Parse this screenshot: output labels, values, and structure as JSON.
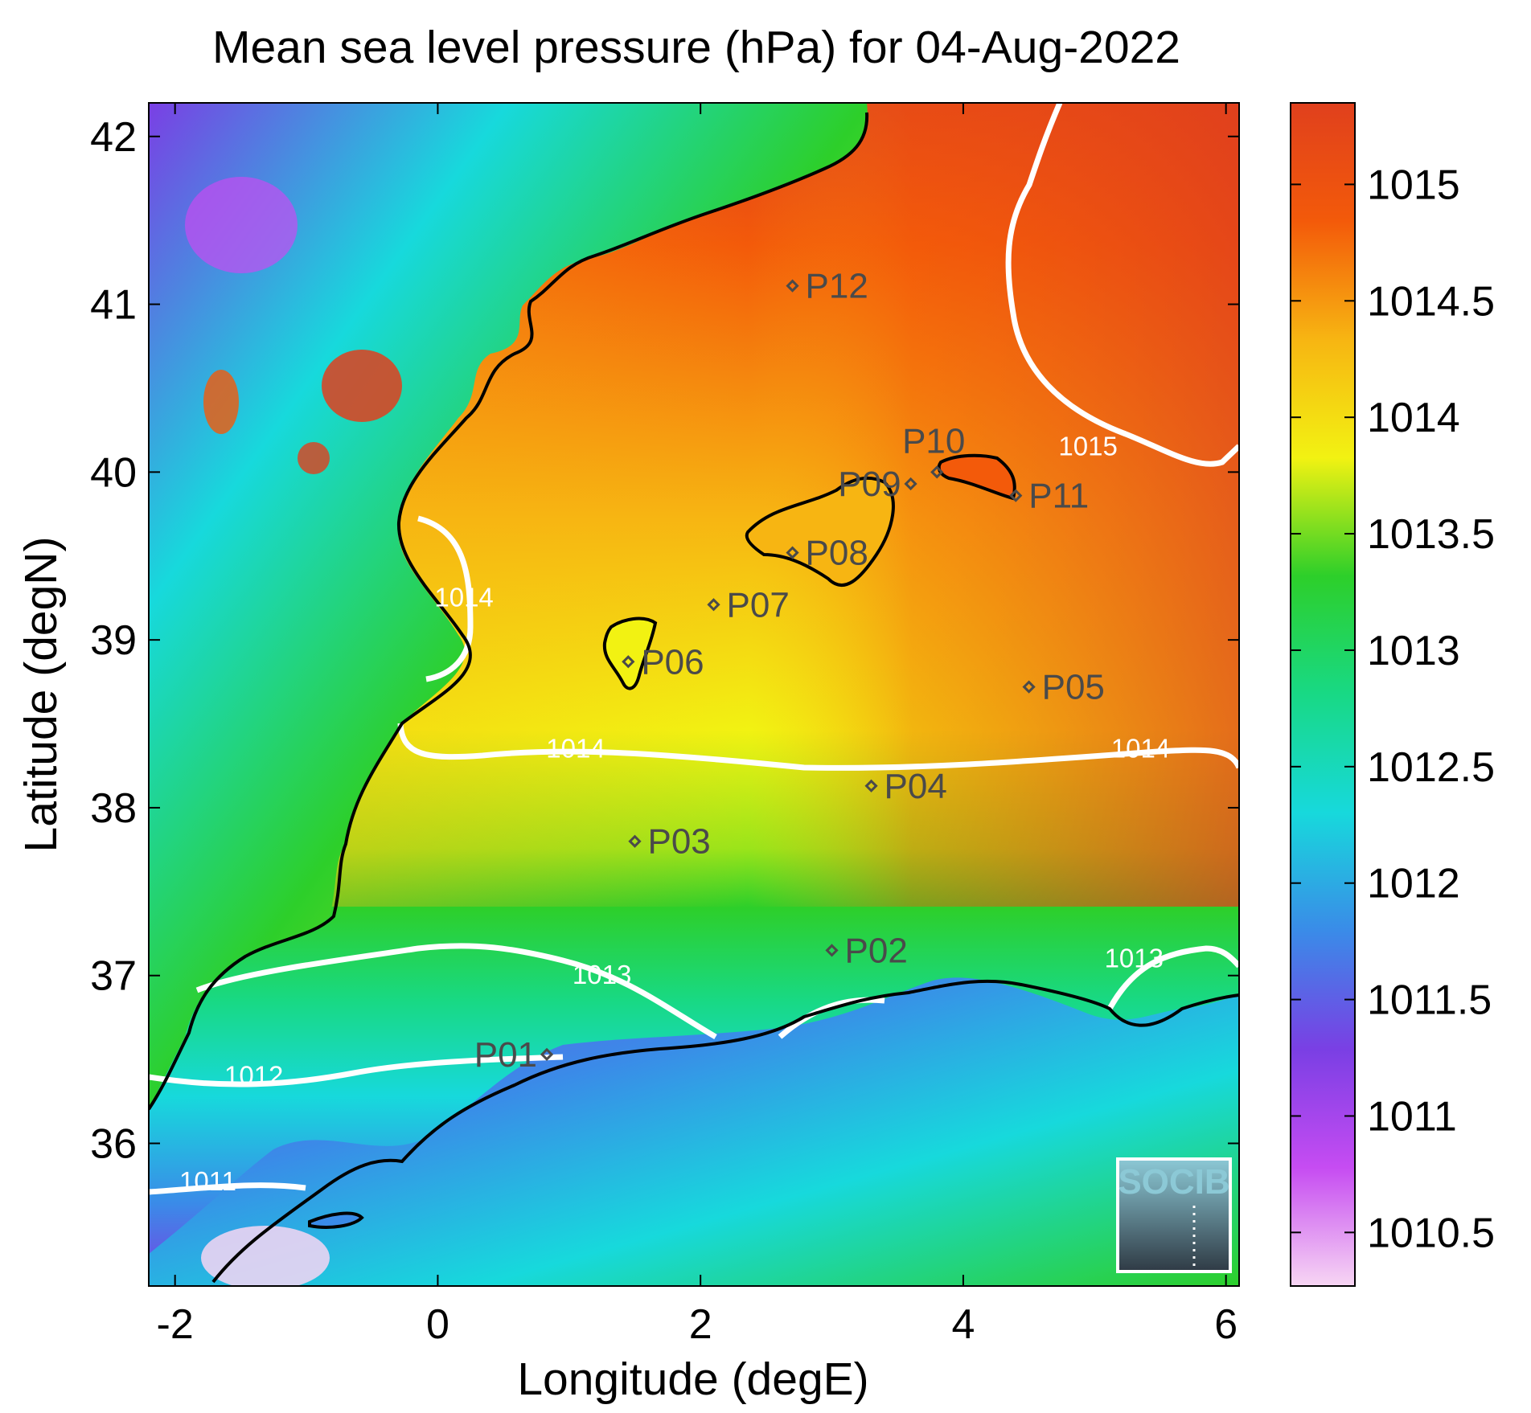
{
  "title": "Mean sea level pressure (hPa) for 04-Aug-2022",
  "x_axis": {
    "label": "Longitude (degE)",
    "range": [
      -2.2,
      6.1
    ],
    "ticks": [
      {
        "value": -2,
        "label": "-2"
      },
      {
        "value": 0,
        "label": "0"
      },
      {
        "value": 2,
        "label": "2"
      },
      {
        "value": 4,
        "label": "4"
      },
      {
        "value": 6,
        "label": "6"
      }
    ]
  },
  "y_axis": {
    "label": "Latitude (degN)",
    "range": [
      35.15,
      42.2
    ],
    "ticks": [
      {
        "value": 36,
        "label": "36"
      },
      {
        "value": 37,
        "label": "37"
      },
      {
        "value": 38,
        "label": "38"
      },
      {
        "value": 39,
        "label": "39"
      },
      {
        "value": 40,
        "label": "40"
      },
      {
        "value": 41,
        "label": "41"
      },
      {
        "value": 42,
        "label": "42"
      }
    ]
  },
  "colorbar": {
    "range": [
      1010.27,
      1015.35
    ],
    "ticks": [
      {
        "value": 1010.5,
        "label": "1010.5"
      },
      {
        "value": 1011,
        "label": "1011"
      },
      {
        "value": 1011.5,
        "label": "1011.5"
      },
      {
        "value": 1012,
        "label": "1012"
      },
      {
        "value": 1012.5,
        "label": "1012.5"
      },
      {
        "value": 1013,
        "label": "1013"
      },
      {
        "value": 1013.5,
        "label": "1013.5"
      },
      {
        "value": 1014,
        "label": "1014"
      },
      {
        "value": 1014.5,
        "label": "1014.5"
      },
      {
        "value": 1015,
        "label": "1015"
      }
    ],
    "colors": [
      "#f7d6f3",
      "#c64cf2",
      "#7a3fe4",
      "#3a8be8",
      "#17d9dc",
      "#18d985",
      "#2dcf2a",
      "#f2f212",
      "#f7b512",
      "#f35a0a",
      "#e0401d"
    ]
  },
  "contour_labels": [
    {
      "text": "1015",
      "lon": 4.95,
      "lat": 40.1
    },
    {
      "text": "1014",
      "lon": 0.2,
      "lat": 39.2
    },
    {
      "text": "1014",
      "lon": 1.05,
      "lat": 38.3
    },
    {
      "text": "1014",
      "lon": 5.35,
      "lat": 38.3
    },
    {
      "text": "1013",
      "lon": 1.25,
      "lat": 36.95
    },
    {
      "text": "1013",
      "lon": 5.3,
      "lat": 37.05
    },
    {
      "text": "1012",
      "lon": -1.4,
      "lat": 36.35
    },
    {
      "text": "1011",
      "lon": -1.75,
      "lat": 35.72
    }
  ],
  "stations": [
    {
      "name": "P01",
      "lon": 0.83,
      "lat": 36.53
    },
    {
      "name": "P02",
      "lon": 3.0,
      "lat": 37.15
    },
    {
      "name": "P03",
      "lon": 1.5,
      "lat": 37.8
    },
    {
      "name": "P04",
      "lon": 3.3,
      "lat": 38.13
    },
    {
      "name": "P05",
      "lon": 4.5,
      "lat": 38.72
    },
    {
      "name": "P06",
      "lon": 1.45,
      "lat": 38.87
    },
    {
      "name": "P07",
      "lon": 2.1,
      "lat": 39.21
    },
    {
      "name": "P08",
      "lon": 2.7,
      "lat": 39.52
    },
    {
      "name": "P09",
      "lon": 3.6,
      "lat": 39.93
    },
    {
      "name": "P10",
      "lon": 3.8,
      "lat": 40.0
    },
    {
      "name": "P11",
      "lon": 4.4,
      "lat": 39.86
    },
    {
      "name": "P12",
      "lon": 2.7,
      "lat": 41.11
    }
  ],
  "logo": {
    "text": "SOCIB"
  }
}
